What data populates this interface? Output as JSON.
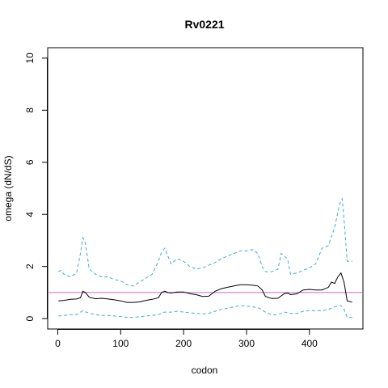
{
  "chart_data": {
    "type": "line",
    "title": "Rv0221",
    "xlabel": "codon",
    "ylabel": "omega (dN/dS)",
    "xlim": [
      -16,
      485
    ],
    "ylim": [
      -0.4,
      10.4
    ],
    "xticks": [
      0,
      100,
      200,
      300,
      400
    ],
    "yticks": [
      0,
      2,
      4,
      6,
      8,
      10
    ],
    "reference_line": {
      "y": 1,
      "color": "#CC66CC"
    },
    "series": [
      {
        "role": "omega",
        "style": "solid",
        "color": "#000000",
        "points": [
          [
            1,
            0.68
          ],
          [
            10,
            0.7
          ],
          [
            20,
            0.74
          ],
          [
            30,
            0.75
          ],
          [
            36,
            0.8
          ],
          [
            40,
            1.05
          ],
          [
            44,
            1.0
          ],
          [
            50,
            0.82
          ],
          [
            60,
            0.76
          ],
          [
            70,
            0.78
          ],
          [
            80,
            0.75
          ],
          [
            90,
            0.72
          ],
          [
            100,
            0.68
          ],
          [
            110,
            0.62
          ],
          [
            120,
            0.62
          ],
          [
            130,
            0.64
          ],
          [
            140,
            0.7
          ],
          [
            150,
            0.74
          ],
          [
            160,
            0.8
          ],
          [
            165,
            1.0
          ],
          [
            170,
            1.05
          ],
          [
            175,
            1.0
          ],
          [
            180,
            0.98
          ],
          [
            190,
            1.02
          ],
          [
            200,
            1.02
          ],
          [
            210,
            0.96
          ],
          [
            220,
            0.92
          ],
          [
            230,
            0.85
          ],
          [
            240,
            0.86
          ],
          [
            250,
            1.05
          ],
          [
            260,
            1.15
          ],
          [
            270,
            1.2
          ],
          [
            280,
            1.25
          ],
          [
            290,
            1.3
          ],
          [
            300,
            1.3
          ],
          [
            310,
            1.28
          ],
          [
            318,
            1.25
          ],
          [
            325,
            1.1
          ],
          [
            330,
            0.85
          ],
          [
            340,
            0.77
          ],
          [
            350,
            0.78
          ],
          [
            360,
            0.96
          ],
          [
            365,
            0.98
          ],
          [
            370,
            0.92
          ],
          [
            380,
            0.95
          ],
          [
            390,
            1.1
          ],
          [
            400,
            1.12
          ],
          [
            410,
            1.1
          ],
          [
            420,
            1.1
          ],
          [
            430,
            1.2
          ],
          [
            435,
            1.4
          ],
          [
            440,
            1.35
          ],
          [
            445,
            1.6
          ],
          [
            450,
            1.75
          ],
          [
            455,
            1.4
          ],
          [
            460,
            0.68
          ],
          [
            468,
            0.63
          ]
        ]
      },
      {
        "role": "upper-bound",
        "style": "dashed",
        "color": "#3FA9E0",
        "points": [
          [
            1,
            1.8
          ],
          [
            5,
            1.85
          ],
          [
            10,
            1.7
          ],
          [
            20,
            1.6
          ],
          [
            30,
            1.75
          ],
          [
            36,
            2.5
          ],
          [
            40,
            3.1
          ],
          [
            44,
            2.9
          ],
          [
            50,
            1.9
          ],
          [
            60,
            1.7
          ],
          [
            70,
            1.6
          ],
          [
            80,
            1.6
          ],
          [
            90,
            1.5
          ],
          [
            100,
            1.45
          ],
          [
            110,
            1.3
          ],
          [
            120,
            1.25
          ],
          [
            130,
            1.4
          ],
          [
            140,
            1.55
          ],
          [
            150,
            1.7
          ],
          [
            160,
            2.2
          ],
          [
            165,
            2.55
          ],
          [
            170,
            2.7
          ],
          [
            175,
            2.4
          ],
          [
            180,
            2.1
          ],
          [
            190,
            2.3
          ],
          [
            200,
            2.2
          ],
          [
            210,
            2.0
          ],
          [
            220,
            1.9
          ],
          [
            230,
            1.95
          ],
          [
            240,
            2.05
          ],
          [
            250,
            2.15
          ],
          [
            260,
            2.3
          ],
          [
            270,
            2.4
          ],
          [
            280,
            2.5
          ],
          [
            290,
            2.6
          ],
          [
            300,
            2.6
          ],
          [
            310,
            2.65
          ],
          [
            318,
            2.5
          ],
          [
            325,
            2.0
          ],
          [
            330,
            1.8
          ],
          [
            340,
            1.8
          ],
          [
            350,
            1.9
          ],
          [
            355,
            2.5
          ],
          [
            360,
            2.4
          ],
          [
            365,
            2.3
          ],
          [
            370,
            1.7
          ],
          [
            380,
            1.75
          ],
          [
            390,
            1.85
          ],
          [
            400,
            1.95
          ],
          [
            410,
            2.1
          ],
          [
            420,
            2.7
          ],
          [
            430,
            2.8
          ],
          [
            440,
            3.5
          ],
          [
            448,
            4.4
          ],
          [
            452,
            4.6
          ],
          [
            456,
            3.5
          ],
          [
            460,
            2.2
          ],
          [
            468,
            2.2
          ]
        ]
      },
      {
        "role": "lower-bound",
        "style": "dashed",
        "color": "#3FA9E0",
        "points": [
          [
            1,
            0.1
          ],
          [
            10,
            0.12
          ],
          [
            20,
            0.15
          ],
          [
            30,
            0.15
          ],
          [
            40,
            0.3
          ],
          [
            50,
            0.2
          ],
          [
            60,
            0.15
          ],
          [
            70,
            0.12
          ],
          [
            80,
            0.12
          ],
          [
            90,
            0.1
          ],
          [
            100,
            0.08
          ],
          [
            110,
            0.05
          ],
          [
            120,
            0.05
          ],
          [
            130,
            0.07
          ],
          [
            140,
            0.1
          ],
          [
            150,
            0.12
          ],
          [
            160,
            0.15
          ],
          [
            170,
            0.25
          ],
          [
            180,
            0.25
          ],
          [
            190,
            0.28
          ],
          [
            200,
            0.25
          ],
          [
            210,
            0.22
          ],
          [
            220,
            0.2
          ],
          [
            230,
            0.18
          ],
          [
            240,
            0.2
          ],
          [
            250,
            0.28
          ],
          [
            260,
            0.35
          ],
          [
            270,
            0.4
          ],
          [
            280,
            0.45
          ],
          [
            290,
            0.5
          ],
          [
            300,
            0.48
          ],
          [
            310,
            0.45
          ],
          [
            320,
            0.4
          ],
          [
            330,
            0.25
          ],
          [
            340,
            0.15
          ],
          [
            350,
            0.15
          ],
          [
            360,
            0.25
          ],
          [
            370,
            0.2
          ],
          [
            380,
            0.2
          ],
          [
            390,
            0.28
          ],
          [
            400,
            0.3
          ],
          [
            410,
            0.3
          ],
          [
            420,
            0.3
          ],
          [
            430,
            0.35
          ],
          [
            440,
            0.45
          ],
          [
            450,
            0.5
          ],
          [
            455,
            0.35
          ],
          [
            460,
            0.05
          ],
          [
            468,
            0.05
          ]
        ]
      }
    ]
  }
}
